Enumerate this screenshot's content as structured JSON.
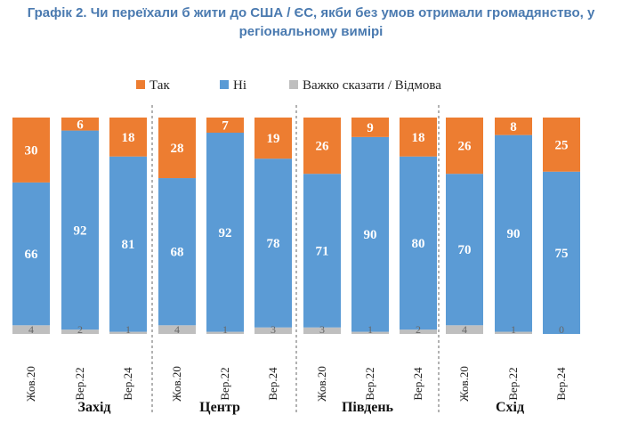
{
  "title": "Графік 2. Чи переїхали б жити до США / ЄС, якби без умов отримали громадянство, у регіональному вимірі",
  "colors": {
    "yes": "#ed7d31",
    "no": "#5b9bd5",
    "hard": "#bfbfbf"
  },
  "chart_data": {
    "type": "bar",
    "stacked": true,
    "legend": [
      "Так",
      "Ні",
      "Важко сказати / Відмова"
    ],
    "legend_position": "top",
    "groups": [
      {
        "name": "Захід",
        "bars": [
          {
            "label": "Жов.20",
            "yes": 30,
            "no": 66,
            "hard": 4
          },
          {
            "label": "Вер.22",
            "yes": 6,
            "no": 92,
            "hard": 2
          },
          {
            "label": "Вер.24",
            "yes": 18,
            "no": 81,
            "hard": 1
          }
        ]
      },
      {
        "name": "Центр",
        "bars": [
          {
            "label": "Жов.20",
            "yes": 28,
            "no": 68,
            "hard": 4
          },
          {
            "label": "Вер.22",
            "yes": 7,
            "no": 92,
            "hard": 1
          },
          {
            "label": "Вер.24",
            "yes": 19,
            "no": 78,
            "hard": 3
          }
        ]
      },
      {
        "name": "Південь",
        "bars": [
          {
            "label": "Жов.20",
            "yes": 26,
            "no": 71,
            "hard": 3
          },
          {
            "label": "Вер.22",
            "yes": 9,
            "no": 90,
            "hard": 1
          },
          {
            "label": "Вер.24",
            "yes": 18,
            "no": 80,
            "hard": 2
          }
        ]
      },
      {
        "name": "Схід",
        "bars": [
          {
            "label": "Жов.20",
            "yes": 26,
            "no": 70,
            "hard": 4
          },
          {
            "label": "Вер.22",
            "yes": 8,
            "no": 90,
            "hard": 1
          },
          {
            "label": "Вер.24",
            "yes": 25,
            "no": 75,
            "hard": 0
          }
        ]
      }
    ],
    "ylim": [
      0,
      100
    ]
  }
}
